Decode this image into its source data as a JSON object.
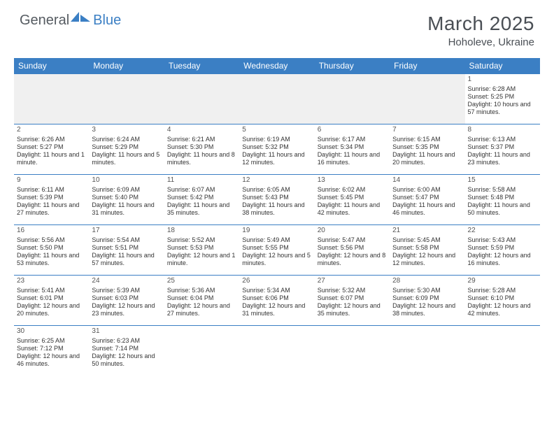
{
  "brand": {
    "part1": "General",
    "part2": "Blue"
  },
  "title": "March 2025",
  "location": "Hoholeve, Ukraine",
  "colors": {
    "header_bg": "#3b7fc4",
    "header_text": "#ffffff",
    "title_text": "#4a4f55",
    "cell_text": "#333333",
    "rule": "#3b7fc4",
    "blank_bg": "#f0f0f0"
  },
  "weekdays": [
    "Sunday",
    "Monday",
    "Tuesday",
    "Wednesday",
    "Thursday",
    "Friday",
    "Saturday"
  ],
  "weeks": [
    [
      null,
      null,
      null,
      null,
      null,
      null,
      {
        "n": "1",
        "sr": "Sunrise: 6:28 AM",
        "ss": "Sunset: 5:25 PM",
        "dl": "Daylight: 10 hours and 57 minutes."
      }
    ],
    [
      {
        "n": "2",
        "sr": "Sunrise: 6:26 AM",
        "ss": "Sunset: 5:27 PM",
        "dl": "Daylight: 11 hours and 1 minute."
      },
      {
        "n": "3",
        "sr": "Sunrise: 6:24 AM",
        "ss": "Sunset: 5:29 PM",
        "dl": "Daylight: 11 hours and 5 minutes."
      },
      {
        "n": "4",
        "sr": "Sunrise: 6:21 AM",
        "ss": "Sunset: 5:30 PM",
        "dl": "Daylight: 11 hours and 8 minutes."
      },
      {
        "n": "5",
        "sr": "Sunrise: 6:19 AM",
        "ss": "Sunset: 5:32 PM",
        "dl": "Daylight: 11 hours and 12 minutes."
      },
      {
        "n": "6",
        "sr": "Sunrise: 6:17 AM",
        "ss": "Sunset: 5:34 PM",
        "dl": "Daylight: 11 hours and 16 minutes."
      },
      {
        "n": "7",
        "sr": "Sunrise: 6:15 AM",
        "ss": "Sunset: 5:35 PM",
        "dl": "Daylight: 11 hours and 20 minutes."
      },
      {
        "n": "8",
        "sr": "Sunrise: 6:13 AM",
        "ss": "Sunset: 5:37 PM",
        "dl": "Daylight: 11 hours and 23 minutes."
      }
    ],
    [
      {
        "n": "9",
        "sr": "Sunrise: 6:11 AM",
        "ss": "Sunset: 5:39 PM",
        "dl": "Daylight: 11 hours and 27 minutes."
      },
      {
        "n": "10",
        "sr": "Sunrise: 6:09 AM",
        "ss": "Sunset: 5:40 PM",
        "dl": "Daylight: 11 hours and 31 minutes."
      },
      {
        "n": "11",
        "sr": "Sunrise: 6:07 AM",
        "ss": "Sunset: 5:42 PM",
        "dl": "Daylight: 11 hours and 35 minutes."
      },
      {
        "n": "12",
        "sr": "Sunrise: 6:05 AM",
        "ss": "Sunset: 5:43 PM",
        "dl": "Daylight: 11 hours and 38 minutes."
      },
      {
        "n": "13",
        "sr": "Sunrise: 6:02 AM",
        "ss": "Sunset: 5:45 PM",
        "dl": "Daylight: 11 hours and 42 minutes."
      },
      {
        "n": "14",
        "sr": "Sunrise: 6:00 AM",
        "ss": "Sunset: 5:47 PM",
        "dl": "Daylight: 11 hours and 46 minutes."
      },
      {
        "n": "15",
        "sr": "Sunrise: 5:58 AM",
        "ss": "Sunset: 5:48 PM",
        "dl": "Daylight: 11 hours and 50 minutes."
      }
    ],
    [
      {
        "n": "16",
        "sr": "Sunrise: 5:56 AM",
        "ss": "Sunset: 5:50 PM",
        "dl": "Daylight: 11 hours and 53 minutes."
      },
      {
        "n": "17",
        "sr": "Sunrise: 5:54 AM",
        "ss": "Sunset: 5:51 PM",
        "dl": "Daylight: 11 hours and 57 minutes."
      },
      {
        "n": "18",
        "sr": "Sunrise: 5:52 AM",
        "ss": "Sunset: 5:53 PM",
        "dl": "Daylight: 12 hours and 1 minute."
      },
      {
        "n": "19",
        "sr": "Sunrise: 5:49 AM",
        "ss": "Sunset: 5:55 PM",
        "dl": "Daylight: 12 hours and 5 minutes."
      },
      {
        "n": "20",
        "sr": "Sunrise: 5:47 AM",
        "ss": "Sunset: 5:56 PM",
        "dl": "Daylight: 12 hours and 8 minutes."
      },
      {
        "n": "21",
        "sr": "Sunrise: 5:45 AM",
        "ss": "Sunset: 5:58 PM",
        "dl": "Daylight: 12 hours and 12 minutes."
      },
      {
        "n": "22",
        "sr": "Sunrise: 5:43 AM",
        "ss": "Sunset: 5:59 PM",
        "dl": "Daylight: 12 hours and 16 minutes."
      }
    ],
    [
      {
        "n": "23",
        "sr": "Sunrise: 5:41 AM",
        "ss": "Sunset: 6:01 PM",
        "dl": "Daylight: 12 hours and 20 minutes."
      },
      {
        "n": "24",
        "sr": "Sunrise: 5:39 AM",
        "ss": "Sunset: 6:03 PM",
        "dl": "Daylight: 12 hours and 23 minutes."
      },
      {
        "n": "25",
        "sr": "Sunrise: 5:36 AM",
        "ss": "Sunset: 6:04 PM",
        "dl": "Daylight: 12 hours and 27 minutes."
      },
      {
        "n": "26",
        "sr": "Sunrise: 5:34 AM",
        "ss": "Sunset: 6:06 PM",
        "dl": "Daylight: 12 hours and 31 minutes."
      },
      {
        "n": "27",
        "sr": "Sunrise: 5:32 AM",
        "ss": "Sunset: 6:07 PM",
        "dl": "Daylight: 12 hours and 35 minutes."
      },
      {
        "n": "28",
        "sr": "Sunrise: 5:30 AM",
        "ss": "Sunset: 6:09 PM",
        "dl": "Daylight: 12 hours and 38 minutes."
      },
      {
        "n": "29",
        "sr": "Sunrise: 5:28 AM",
        "ss": "Sunset: 6:10 PM",
        "dl": "Daylight: 12 hours and 42 minutes."
      }
    ],
    [
      {
        "n": "30",
        "sr": "Sunrise: 6:25 AM",
        "ss": "Sunset: 7:12 PM",
        "dl": "Daylight: 12 hours and 46 minutes."
      },
      {
        "n": "31",
        "sr": "Sunrise: 6:23 AM",
        "ss": "Sunset: 7:14 PM",
        "dl": "Daylight: 12 hours and 50 minutes."
      },
      null,
      null,
      null,
      null,
      null
    ]
  ]
}
